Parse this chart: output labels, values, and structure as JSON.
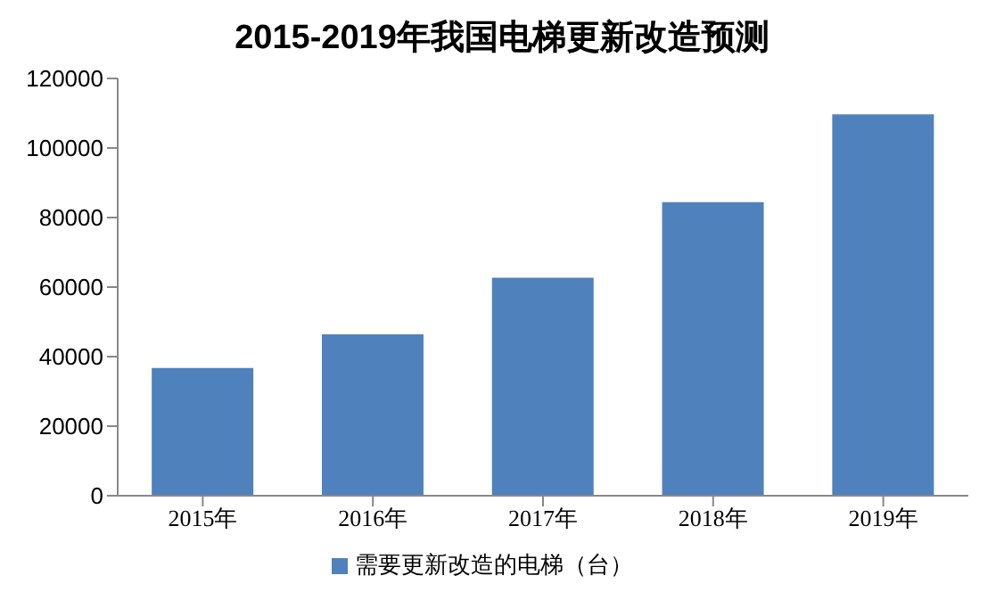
{
  "chart_data": {
    "type": "bar",
    "title": "2015-2019年我国电梯更新改造预测",
    "categories": [
      "2015年",
      "2016年",
      "2017年",
      "2018年",
      "2019年"
    ],
    "series": [
      {
        "name": "需要更新改造的电梯（台）",
        "color": "#4f81bd",
        "values": [
          36700,
          46400,
          62700,
          84400,
          109700
        ]
      }
    ],
    "ylim": [
      0,
      120000
    ],
    "yticks": [
      0,
      20000,
      40000,
      60000,
      80000,
      100000,
      120000
    ],
    "grid": false,
    "legend": "bottom"
  }
}
